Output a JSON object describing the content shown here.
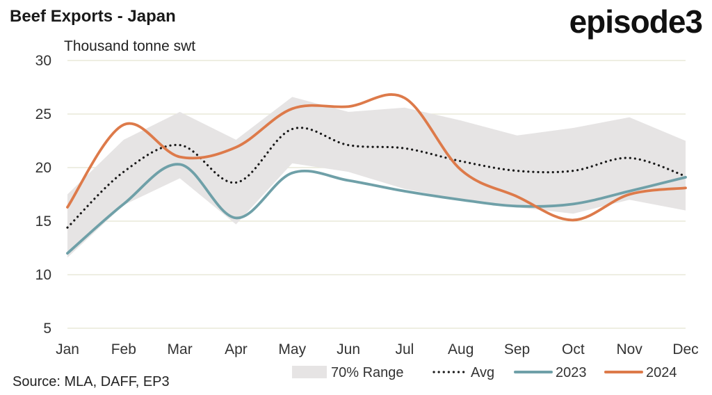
{
  "header": {
    "title": "Beef Exports - Japan",
    "logo_text": "episode3"
  },
  "footer": {
    "source": "Source: MLA, DAFF, EP3"
  },
  "colors": {
    "range": "#e6e4e4",
    "avg": "#1a1a1a",
    "s2023": "#6fa0a8",
    "s2024": "#dd7a4a",
    "grid": "#e9e9d8"
  },
  "chart_data": {
    "type": "line",
    "title": "Beef Exports - Japan",
    "ylabel": "Thousand tonne swt",
    "xlabel": "",
    "categories": [
      "Jan",
      "Feb",
      "Mar",
      "Apr",
      "May",
      "Jun",
      "Jul",
      "Aug",
      "Sep",
      "Oct",
      "Nov",
      "Dec"
    ],
    "ylim": [
      5,
      30
    ],
    "yticks": [
      5,
      10,
      15,
      20,
      25,
      30
    ],
    "grid": true,
    "legend_position": "bottom-right",
    "range": {
      "name": "70% Range",
      "low": [
        11.6,
        16.5,
        19.0,
        14.7,
        20.4,
        19.6,
        18.0,
        17.0,
        16.3,
        15.7,
        17.0,
        16.0
      ],
      "high": [
        17.5,
        22.6,
        25.2,
        22.6,
        26.6,
        25.2,
        25.6,
        24.4,
        23.0,
        23.7,
        24.7,
        22.5
      ]
    },
    "series": [
      {
        "name": "Avg",
        "style": "dotted",
        "values": [
          14.4,
          19.6,
          22.1,
          18.6,
          23.6,
          22.1,
          21.8,
          20.6,
          19.7,
          19.7,
          20.9,
          19.2
        ]
      },
      {
        "name": "2023",
        "style": "solid",
        "values": [
          12.0,
          16.6,
          20.3,
          15.3,
          19.5,
          18.8,
          17.8,
          17.0,
          16.4,
          16.6,
          17.8,
          19.1
        ]
      },
      {
        "name": "2024",
        "style": "solid",
        "values": [
          16.3,
          24.0,
          21.0,
          21.9,
          25.5,
          25.7,
          26.5,
          19.8,
          17.3,
          15.1,
          17.5,
          18.1
        ]
      }
    ]
  }
}
